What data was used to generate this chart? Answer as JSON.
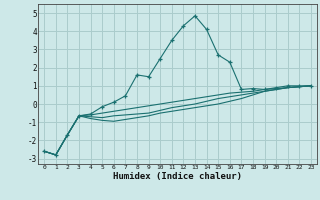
{
  "xlabel": "Humidex (Indice chaleur)",
  "bg_color": "#cde8e8",
  "grid_color": "#aacccc",
  "line_color": "#1a7070",
  "xlim": [
    -0.5,
    23.5
  ],
  "ylim": [
    -3.3,
    5.5
  ],
  "xticks": [
    0,
    1,
    2,
    3,
    4,
    5,
    6,
    7,
    8,
    9,
    10,
    11,
    12,
    13,
    14,
    15,
    16,
    17,
    18,
    19,
    20,
    21,
    22,
    23
  ],
  "yticks": [
    -3,
    -2,
    -1,
    0,
    1,
    2,
    3,
    4,
    5
  ],
  "line1_x": [
    0,
    1,
    2,
    3,
    4,
    5,
    6,
    7,
    8,
    9,
    10,
    11,
    12,
    13,
    14,
    15,
    16,
    17,
    18,
    19,
    20,
    21,
    22,
    23
  ],
  "line1_y": [
    -2.6,
    -2.8,
    -1.7,
    -0.65,
    -0.55,
    -0.15,
    0.1,
    0.45,
    1.6,
    1.5,
    2.5,
    3.5,
    4.3,
    4.85,
    4.1,
    2.7,
    2.3,
    0.8,
    0.85,
    0.8,
    0.9,
    1.0,
    1.0,
    1.0
  ],
  "line2_x": [
    0,
    1,
    2,
    3,
    4,
    5,
    6,
    7,
    8,
    9,
    10,
    11,
    12,
    13,
    14,
    15,
    16,
    17,
    18,
    19,
    20,
    21,
    22,
    23
  ],
  "line2_y": [
    -2.6,
    -2.8,
    -1.7,
    -0.65,
    -0.6,
    -0.5,
    -0.4,
    -0.3,
    -0.2,
    -0.1,
    0.0,
    0.1,
    0.2,
    0.3,
    0.4,
    0.5,
    0.6,
    0.65,
    0.7,
    0.8,
    0.85,
    0.9,
    0.95,
    1.0
  ],
  "line3_x": [
    0,
    1,
    2,
    3,
    4,
    5,
    6,
    7,
    8,
    9,
    10,
    11,
    12,
    13,
    14,
    15,
    16,
    17,
    18,
    19,
    20,
    21,
    22,
    23
  ],
  "line3_y": [
    -2.6,
    -2.8,
    -1.7,
    -0.65,
    -0.7,
    -0.75,
    -0.65,
    -0.6,
    -0.55,
    -0.5,
    -0.35,
    -0.2,
    -0.1,
    0.0,
    0.15,
    0.3,
    0.4,
    0.5,
    0.6,
    0.7,
    0.8,
    0.9,
    0.95,
    1.0
  ],
  "line4_x": [
    0,
    1,
    2,
    3,
    4,
    5,
    6,
    7,
    8,
    9,
    10,
    11,
    12,
    13,
    14,
    15,
    16,
    17,
    18,
    19,
    20,
    21,
    22,
    23
  ],
  "line4_y": [
    -2.6,
    -2.8,
    -1.7,
    -0.65,
    -0.8,
    -0.9,
    -0.95,
    -0.85,
    -0.75,
    -0.65,
    -0.5,
    -0.4,
    -0.3,
    -0.2,
    -0.1,
    0.0,
    0.15,
    0.3,
    0.5,
    0.7,
    0.8,
    0.9,
    0.95,
    1.0
  ]
}
